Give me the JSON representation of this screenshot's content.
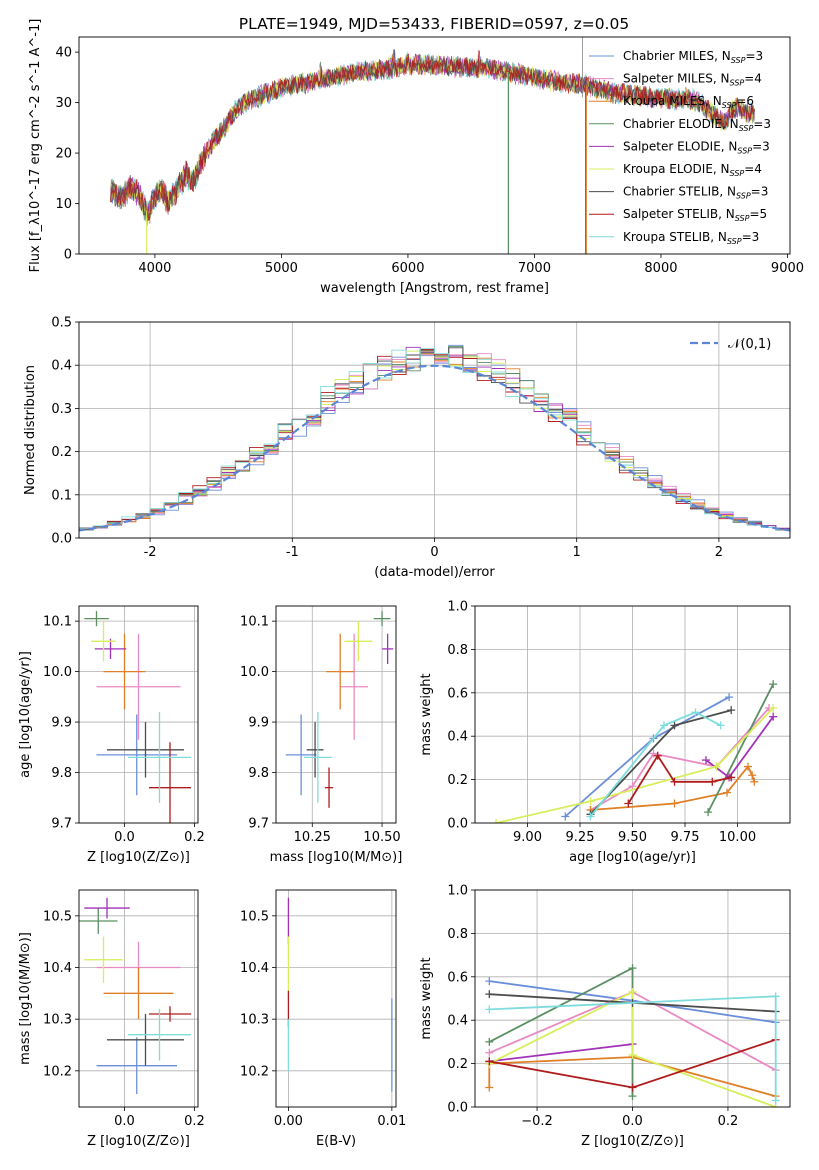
{
  "title": "PLATE=1949, MJD=53433, FIBERID=0597, z=0.05",
  "series_names": [
    "Chabrier MILES",
    "Salpeter MILES",
    "Kroupa MILES",
    "Chabrier ELODIE",
    "Salpeter ELODIE",
    "Kroupa ELODIE",
    "Chabrier STELIB",
    "Salpeter STELIB",
    "Kroupa STELIB"
  ],
  "series_colors": [
    "#6a8fd8",
    "#e98ac2",
    "#e07f26",
    "#5a8f62",
    "#a232b8",
    "#d8ee5a",
    "#4d4d4d",
    "#b01c1c",
    "#7fdcdc"
  ],
  "n_ssp": [
    3,
    4,
    6,
    3,
    3,
    4,
    3,
    5,
    3
  ],
  "chart_data": [
    {
      "type": "line",
      "id": "spectrum",
      "title": "PLATE=1949, MJD=53433, FIBERID=0597, z=0.05",
      "xlabel": "wavelength [Angstrom, rest frame]",
      "ylabel": "Flux [f_λ10^-17 erg cm^-2 s^-1 A^-1]",
      "xlim": [
        3400,
        9020
      ],
      "ylim": [
        0,
        43
      ],
      "xticks": [
        4000,
        5000,
        6000,
        7000,
        8000,
        9000
      ],
      "yticks": [
        0,
        10,
        20,
        30,
        40
      ],
      "legend": "right",
      "legend_labels": [
        "Chabrier MILES, N_SSP=3",
        "Salpeter MILES, N_SSP=4",
        "Kroupa MILES, N_SSP=6",
        "Chabrier ELODIE, N_SSP=3",
        "Salpeter ELODIE, N_SSP=3",
        "Kroupa ELODIE, N_SSP=4",
        "Chabrier STELIB, N_SSP=3",
        "Salpeter STELIB, N_SSP=5",
        "Kroupa STELIB, N_SSP=3"
      ],
      "continuum": [
        [
          3650,
          13
        ],
        [
          3720,
          11
        ],
        [
          3800,
          13
        ],
        [
          3870,
          12
        ],
        [
          3900,
          10
        ],
        [
          3950,
          8
        ],
        [
          3990,
          11
        ],
        [
          4050,
          13
        ],
        [
          4100,
          10
        ],
        [
          4180,
          13
        ],
        [
          4250,
          16
        ],
        [
          4300,
          14
        ],
        [
          4380,
          19
        ],
        [
          4450,
          22
        ],
        [
          4550,
          25
        ],
        [
          4650,
          29
        ],
        [
          4800,
          31
        ],
        [
          5000,
          33
        ],
        [
          5200,
          34
        ],
        [
          5400,
          35
        ],
        [
          5600,
          36
        ],
        [
          5800,
          36.5
        ],
        [
          6000,
          37.5
        ],
        [
          6200,
          37.5
        ],
        [
          6400,
          37
        ],
        [
          6600,
          37
        ],
        [
          6800,
          36
        ],
        [
          7000,
          35
        ],
        [
          7200,
          34
        ],
        [
          7400,
          33.5
        ],
        [
          7600,
          32
        ],
        [
          7800,
          31.5
        ],
        [
          8000,
          31
        ],
        [
          8100,
          30.5
        ],
        [
          8200,
          31
        ],
        [
          8300,
          30
        ],
        [
          8400,
          28
        ],
        [
          8500,
          26
        ],
        [
          8550,
          28
        ],
        [
          8600,
          29
        ],
        [
          8700,
          28
        ]
      ],
      "drops": [
        {
          "series": 5,
          "x": 3935
        },
        {
          "series": 5,
          "x": 6790
        },
        {
          "series": 3,
          "x": 6795
        },
        {
          "series": 7,
          "x": 7405
        },
        {
          "series": 2,
          "x": 7410
        }
      ]
    },
    {
      "type": "bar",
      "id": "residuals",
      "xlabel": "(data-model)/error",
      "ylabel": "Normed distribution",
      "xlim": [
        -2.5,
        2.5
      ],
      "ylim": [
        0,
        0.5
      ],
      "xticks": [
        -2,
        -1,
        0,
        1,
        2
      ],
      "yticks": [
        0.0,
        0.1,
        0.2,
        0.3,
        0.4,
        0.5
      ],
      "bin_width": 0.1,
      "legend": "top-right",
      "legend_label": "𝒩(0,1)",
      "reference_curve": "normal(0,1)"
    },
    {
      "type": "scatter",
      "id": "age-vs-Z",
      "xlabel": "Z [log10(Z/Z⊙)]",
      "ylabel": "age  [log10(age/yr)]",
      "xlim": [
        -0.13,
        0.21
      ],
      "ylim": [
        9.7,
        10.13
      ],
      "xticks": [
        0.0,
        0.2
      ],
      "xtick_labels": [
        "0.0",
        "0.2"
      ],
      "yticks": [
        9.7,
        9.8,
        9.9,
        10.0,
        10.1
      ],
      "points": [
        {
          "series": 0,
          "x": 0.035,
          "y": 9.835,
          "xerr": 0.115,
          "yerr": 0.08
        },
        {
          "series": 1,
          "x": 0.04,
          "y": 9.97,
          "xerr": 0.12,
          "yerr": 0.105
        },
        {
          "series": 2,
          "x": 0.0,
          "y": 10.0,
          "xerr": 0.06,
          "yerr": 0.075
        },
        {
          "series": 3,
          "x": -0.08,
          "y": 10.105,
          "xerr": 0.035,
          "yerr": 0.015
        },
        {
          "series": 4,
          "x": -0.04,
          "y": 10.045,
          "xerr": 0.045,
          "yerr": 0.02
        },
        {
          "series": 5,
          "x": -0.06,
          "y": 10.06,
          "xerr": 0.035,
          "yerr": 0.04
        },
        {
          "series": 6,
          "x": 0.06,
          "y": 9.845,
          "xerr": 0.11,
          "yerr": 0.055
        },
        {
          "series": 7,
          "x": 0.13,
          "y": 9.77,
          "xerr": 0.06,
          "yerr": 0.09
        },
        {
          "series": 8,
          "x": 0.1,
          "y": 9.83,
          "xerr": 0.09,
          "yerr": 0.09
        }
      ]
    },
    {
      "type": "scatter",
      "id": "age-vs-mass",
      "xlabel": "mass [log10(M/M⊙)]",
      "ylabel": "",
      "xlim": [
        10.12,
        10.55
      ],
      "ylim": [
        9.7,
        10.13
      ],
      "xticks": [
        10.25,
        10.5
      ],
      "xtick_labels": [
        "10.25",
        "10.50"
      ],
      "yticks": [
        9.7,
        9.8,
        9.9,
        10.0,
        10.1
      ],
      "points": [
        {
          "series": 0,
          "x": 10.21,
          "y": 9.835,
          "xerr": 0.055,
          "yerr": 0.08
        },
        {
          "series": 1,
          "x": 10.4,
          "y": 9.97,
          "xerr": 0.05,
          "yerr": 0.105
        },
        {
          "series": 2,
          "x": 10.35,
          "y": 10.0,
          "xerr": 0.05,
          "yerr": 0.075
        },
        {
          "series": 3,
          "x": 10.5,
          "y": 10.105,
          "xerr": 0.03,
          "yerr": 0.015
        },
        {
          "series": 4,
          "x": 10.52,
          "y": 10.045,
          "xerr": 0.02,
          "yerr": 0.03
        },
        {
          "series": 5,
          "x": 10.415,
          "y": 10.06,
          "xerr": 0.05,
          "yerr": 0.04
        },
        {
          "series": 6,
          "x": 10.26,
          "y": 9.845,
          "xerr": 0.03,
          "yerr": 0.055
        },
        {
          "series": 7,
          "x": 10.31,
          "y": 9.77,
          "xerr": 0.015,
          "yerr": 0.04
        },
        {
          "series": 8,
          "x": 10.27,
          "y": 9.83,
          "xerr": 0.05,
          "yerr": 0.09
        }
      ]
    },
    {
      "type": "line",
      "id": "mass-weight-vs-age",
      "xlabel": "age  [log10(age/yr)]",
      "ylabel": "mass weight",
      "xlim": [
        8.75,
        10.25
      ],
      "ylim": [
        0,
        1
      ],
      "xticks": [
        9.0,
        9.25,
        9.5,
        9.75,
        10.0
      ],
      "xtick_labels": [
        "9.00",
        "9.25",
        "9.50",
        "9.75",
        "10.00"
      ],
      "yticks": [
        0.0,
        0.2,
        0.4,
        0.6,
        0.8,
        1.0
      ],
      "series": [
        {
          "series": 0,
          "x": [
            9.18,
            9.6,
            9.96
          ],
          "y": [
            0.03,
            0.39,
            0.58
          ]
        },
        {
          "series": 1,
          "x": [
            9.3,
            9.5,
            9.6,
            9.9,
            10.15
          ],
          "y": [
            0.06,
            0.17,
            0.32,
            0.26,
            0.53
          ]
        },
        {
          "series": 2,
          "x": [
            9.3,
            9.7,
            9.95,
            10.05,
            10.07,
            10.08
          ],
          "y": [
            0.06,
            0.09,
            0.14,
            0.26,
            0.22,
            0.19
          ]
        },
        {
          "series": 3,
          "x": [
            9.86,
            10.17
          ],
          "y": [
            0.05,
            0.64
          ]
        },
        {
          "series": 4,
          "x": [
            9.85,
            9.96,
            10.17
          ],
          "y": [
            0.29,
            0.21,
            0.49
          ]
        },
        {
          "series": 5,
          "x": [
            8.85,
            9.3,
            9.9,
            10.17
          ],
          "y": [
            0.0,
            0.1,
            0.26,
            0.53
          ]
        },
        {
          "series": 6,
          "x": [
            9.3,
            9.7,
            9.97
          ],
          "y": [
            0.04,
            0.45,
            0.52
          ]
        },
        {
          "series": 7,
          "x": [
            9.48,
            9.62,
            9.7,
            9.88,
            9.97
          ],
          "y": [
            0.09,
            0.31,
            0.19,
            0.19,
            0.21
          ]
        },
        {
          "series": 8,
          "x": [
            9.3,
            9.65,
            9.8,
            9.92
          ],
          "y": [
            0.03,
            0.45,
            0.51,
            0.45
          ]
        }
      ]
    },
    {
      "type": "scatter",
      "id": "mass-vs-Z",
      "xlabel": "Z [log10(Z/Z⊙)]",
      "ylabel": "mass [log10(M/M⊙)]",
      "xlim": [
        -0.13,
        0.21
      ],
      "ylim": [
        10.13,
        10.55
      ],
      "xticks": [
        0.0,
        0.2
      ],
      "xtick_labels": [
        "0.0",
        "0.2"
      ],
      "yticks": [
        10.2,
        10.3,
        10.4,
        10.5
      ],
      "points": [
        {
          "series": 0,
          "x": 0.035,
          "y": 10.21,
          "xerr": 0.115,
          "yerr": 0.055
        },
        {
          "series": 1,
          "x": 0.04,
          "y": 10.4,
          "xerr": 0.12,
          "yerr": 0.05
        },
        {
          "series": 2,
          "x": 0.04,
          "y": 10.35,
          "xerr": 0.1,
          "yerr": 0.05
        },
        {
          "series": 3,
          "x": -0.075,
          "y": 10.49,
          "xerr": 0.055,
          "yerr": 0.025
        },
        {
          "series": 4,
          "x": -0.05,
          "y": 10.515,
          "xerr": 0.065,
          "yerr": 0.02
        },
        {
          "series": 5,
          "x": -0.06,
          "y": 10.415,
          "xerr": 0.055,
          "yerr": 0.045
        },
        {
          "series": 6,
          "x": 0.06,
          "y": 10.26,
          "xerr": 0.11,
          "yerr": 0.05
        },
        {
          "series": 7,
          "x": 0.13,
          "y": 10.31,
          "xerr": 0.06,
          "yerr": 0.015
        },
        {
          "series": 8,
          "x": 0.1,
          "y": 10.27,
          "xerr": 0.09,
          "yerr": 0.05
        }
      ]
    },
    {
      "type": "scatter",
      "id": "mass-vs-ebv",
      "xlabel": "E(B-V)",
      "ylabel": "",
      "xlim": [
        -0.0012,
        0.0104
      ],
      "ylim": [
        10.13,
        10.55
      ],
      "xticks": [
        0.0,
        0.01
      ],
      "xtick_labels": [
        "0.00",
        "0.01"
      ],
      "yticks": [
        10.2,
        10.3,
        10.4,
        10.5
      ],
      "points": [
        {
          "series": 0,
          "x": 0.01,
          "y": 10.25,
          "yerr": 0.09
        },
        {
          "series": 4,
          "x": 0.0,
          "y": 10.49,
          "yerr": 0.045
        },
        {
          "series": 5,
          "x": 0.0,
          "y": 10.4,
          "yerr": 0.06
        },
        {
          "series": 7,
          "x": 0.0,
          "y": 10.32,
          "yerr": 0.035
        },
        {
          "series": 8,
          "x": 0.0,
          "y": 10.25,
          "yerr": 0.05
        }
      ]
    },
    {
      "type": "line",
      "id": "mass-weight-vs-Z",
      "xlabel": "Z [log10(Z/Z⊙)]",
      "ylabel": "mass weight",
      "xlim": [
        -0.33,
        0.33
      ],
      "ylim": [
        0,
        1
      ],
      "xticks": [
        -0.2,
        0.0,
        0.2
      ],
      "xtick_labels": [
        "−0.2",
        "0.0",
        "0.2"
      ],
      "yticks": [
        0.0,
        0.2,
        0.4,
        0.6,
        0.8,
        1.0
      ],
      "series": [
        {
          "series": 0,
          "x": [
            -0.3,
            0.0,
            0.3
          ],
          "y": [
            0.58,
            0.49,
            0.39
          ]
        },
        {
          "series": 1,
          "x": [
            -0.3,
            0.0,
            0.3
          ],
          "y": [
            0.25,
            0.53,
            0.17
          ]
        },
        {
          "series": 2,
          "x": [
            -0.3,
            -0.3,
            0.0,
            0.3
          ],
          "y": [
            0.09,
            0.2,
            0.23,
            0.05
          ]
        },
        {
          "series": 3,
          "x": [
            -0.3,
            0.0,
            0.0
          ],
          "y": [
            0.3,
            0.64,
            0.05
          ]
        },
        {
          "series": 4,
          "x": [
            -0.3,
            0.0
          ],
          "y": [
            0.21,
            0.29
          ]
        },
        {
          "series": 5,
          "x": [
            -0.3,
            0.0,
            0.0,
            0.3
          ],
          "y": [
            0.2,
            0.53,
            0.24,
            0.0
          ]
        },
        {
          "series": 6,
          "x": [
            -0.3,
            0.0,
            0.3
          ],
          "y": [
            0.52,
            0.48,
            0.44
          ]
        },
        {
          "series": 7,
          "x": [
            -0.3,
            0.0,
            0.3
          ],
          "y": [
            0.21,
            0.09,
            0.31
          ]
        },
        {
          "series": 8,
          "x": [
            -0.3,
            0.3,
            0.3
          ],
          "y": [
            0.45,
            0.51,
            0.03
          ]
        }
      ]
    }
  ]
}
